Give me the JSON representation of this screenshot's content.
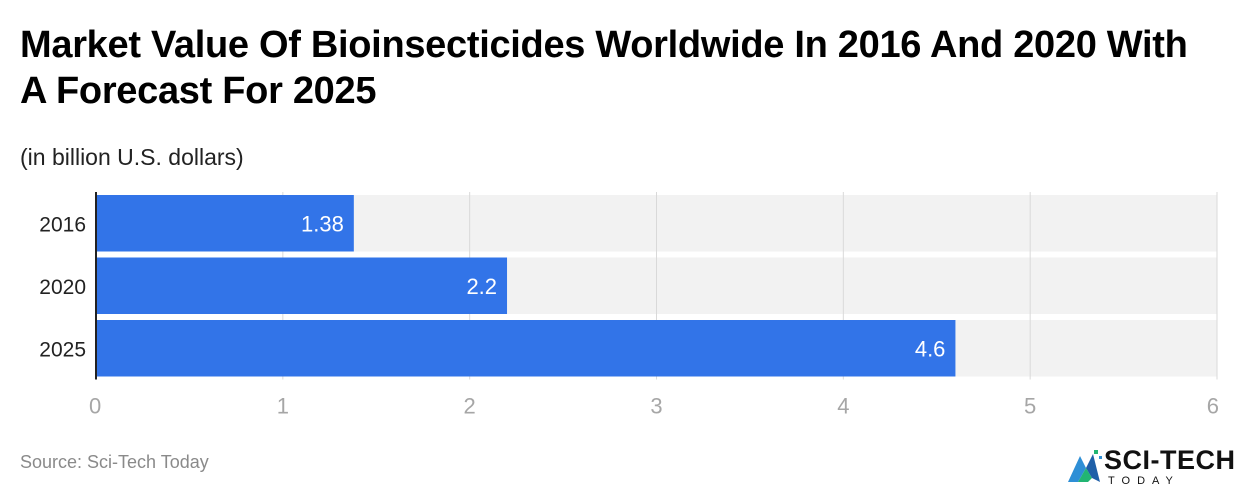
{
  "title": "Market Value Of Bioinsecticides Worldwide In 2016 And 2020 With A Forecast For 2025",
  "subtitle": "(in billion U.S. dollars)",
  "source": "Source: Sci-Tech Today",
  "logo": {
    "main": "SCI-TECH",
    "sub": "TODAY",
    "icon": "chart-logo-icon"
  },
  "colors": {
    "bar": "#3274E8",
    "track": "#F2F2F2",
    "grid": "#D9D9D9",
    "axis": "#222222",
    "tick_label": "#A6A6A6",
    "category_label": "#222222",
    "value_label": "#FFFFFF"
  },
  "chart_data": {
    "type": "bar",
    "orientation": "horizontal",
    "categories": [
      "2016",
      "2020",
      "2025"
    ],
    "values": [
      1.38,
      2.2,
      4.6
    ],
    "value_labels": [
      "1.38",
      "2.2",
      "4.6"
    ],
    "xlim": [
      0,
      6
    ],
    "xticks": [
      0,
      1,
      2,
      3,
      4,
      5,
      6
    ],
    "grid": true
  }
}
